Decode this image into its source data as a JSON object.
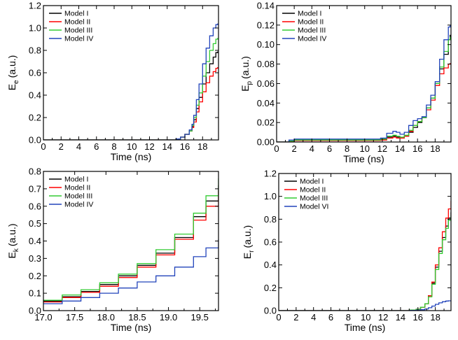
{
  "chart_data": [
    {
      "type": "line",
      "id": "Ee",
      "ylabel_main": "E",
      "ylabel_sub": "e",
      "ylabel_unit": "(a.u.)",
      "xlabel": "Time (ns)",
      "xlim": [
        0,
        19.8
      ],
      "ylim": [
        0,
        1.2
      ],
      "xticks": [
        0,
        2,
        4,
        6,
        8,
        10,
        12,
        14,
        16,
        18
      ],
      "xtick_labels": [
        "0",
        "2",
        "4",
        "6",
        "8",
        "10",
        "12",
        "14",
        "16",
        "18"
      ],
      "yticks": [
        0,
        0.2,
        0.4,
        0.6,
        0.8,
        1.0,
        1.2
      ],
      "ytick_labels": [
        "0.0",
        "0.2",
        "0.4",
        "0.6",
        "0.8",
        "1.0",
        "1.2"
      ],
      "legend_position": "top-left",
      "series": [
        {
          "name": "Model I",
          "color": "#000000",
          "x": [
            0,
            14.0,
            15.0,
            15.5,
            16.0,
            16.5,
            16.8,
            17.0,
            17.3,
            17.6,
            18.0,
            18.4,
            18.8,
            19.2,
            19.5,
            19.7
          ],
          "y": [
            0.0,
            0.0,
            0.008,
            0.025,
            0.05,
            0.08,
            0.12,
            0.18,
            0.28,
            0.38,
            0.5,
            0.6,
            0.68,
            0.74,
            0.78,
            0.79
          ]
        },
        {
          "name": "Model II",
          "color": "#ff0000",
          "x": [
            0,
            14.0,
            15.0,
            15.5,
            16.0,
            16.5,
            16.8,
            17.0,
            17.3,
            17.6,
            18.0,
            18.4,
            18.8,
            19.2,
            19.5,
            19.7
          ],
          "y": [
            0.0,
            0.0,
            0.008,
            0.025,
            0.05,
            0.08,
            0.11,
            0.16,
            0.25,
            0.34,
            0.43,
            0.51,
            0.57,
            0.61,
            0.64,
            0.65
          ]
        },
        {
          "name": "Model III",
          "color": "#33cc33",
          "x": [
            0,
            14.0,
            15.0,
            15.5,
            16.0,
            16.5,
            16.8,
            17.0,
            17.3,
            17.6,
            18.0,
            18.4,
            18.8,
            19.2,
            19.5,
            19.7
          ],
          "y": [
            0.0,
            0.0,
            0.008,
            0.025,
            0.05,
            0.08,
            0.13,
            0.2,
            0.31,
            0.42,
            0.57,
            0.7,
            0.8,
            0.86,
            0.9,
            0.91
          ]
        },
        {
          "name": "Model IV",
          "color": "#2244bb",
          "x": [
            0,
            14.0,
            15.0,
            15.5,
            16.0,
            16.5,
            16.8,
            17.0,
            17.3,
            17.6,
            18.0,
            18.4,
            18.8,
            19.2,
            19.5,
            19.7
          ],
          "y": [
            0.0,
            0.0,
            0.008,
            0.025,
            0.05,
            0.09,
            0.14,
            0.22,
            0.36,
            0.5,
            0.68,
            0.82,
            0.93,
            1.0,
            1.03,
            1.04
          ]
        }
      ]
    },
    {
      "type": "line",
      "id": "Ep",
      "ylabel_main": "E",
      "ylabel_sub": "p",
      "ylabel_unit": "(a.u.)",
      "xlabel": "Time (ns)",
      "xlim": [
        0,
        19.8
      ],
      "ylim": [
        0,
        0.14
      ],
      "xticks": [
        0,
        2,
        4,
        6,
        8,
        10,
        12,
        14,
        16,
        18
      ],
      "xtick_labels": [
        "0",
        "2",
        "4",
        "6",
        "8",
        "10",
        "12",
        "14",
        "16",
        "18"
      ],
      "yticks": [
        0,
        0.02,
        0.04,
        0.06,
        0.08,
        0.1,
        0.12,
        0.14
      ],
      "ytick_labels": [
        "0.00",
        "0.02",
        "0.04",
        "0.06",
        "0.08",
        "0.10",
        "0.12",
        "0.14"
      ],
      "legend_position": "top-left",
      "series": [
        {
          "name": "Model I",
          "color": "#000000",
          "x": [
            0,
            1.4,
            2.0,
            6.0,
            10.0,
            11.8,
            12.5,
            13.2,
            13.6,
            14.0,
            14.5,
            15.0,
            15.5,
            16.0,
            16.5,
            17.0,
            17.5,
            18.0,
            18.5,
            19.0,
            19.5,
            19.7
          ],
          "y": [
            0.0,
            0.001,
            0.002,
            0.002,
            0.002,
            0.003,
            0.005,
            0.006,
            0.005,
            0.004,
            0.006,
            0.01,
            0.015,
            0.02,
            0.025,
            0.035,
            0.045,
            0.06,
            0.075,
            0.09,
            0.105,
            0.11
          ]
        },
        {
          "name": "Model II",
          "color": "#ff0000",
          "x": [
            0,
            1.4,
            2.0,
            6.0,
            10.0,
            11.8,
            12.5,
            13.2,
            13.6,
            14.0,
            14.5,
            15.0,
            15.5,
            16.0,
            16.5,
            17.0,
            17.5,
            18.0,
            18.5,
            19.0,
            19.5,
            19.7
          ],
          "y": [
            0.0,
            0.001,
            0.0015,
            0.0015,
            0.0015,
            0.002,
            0.004,
            0.005,
            0.004,
            0.004,
            0.006,
            0.011,
            0.017,
            0.021,
            0.025,
            0.033,
            0.043,
            0.058,
            0.07,
            0.076,
            0.08,
            0.081
          ]
        },
        {
          "name": "Model III",
          "color": "#33cc33",
          "x": [
            0,
            1.4,
            2.0,
            6.0,
            10.0,
            11.8,
            12.5,
            13.2,
            13.6,
            14.0,
            14.5,
            15.0,
            15.5,
            16.0,
            16.5,
            17.0,
            17.5,
            18.0,
            18.5,
            19.0,
            19.5,
            19.7
          ],
          "y": [
            0.0,
            0.001,
            0.002,
            0.002,
            0.002,
            0.003,
            0.006,
            0.007,
            0.006,
            0.005,
            0.007,
            0.012,
            0.017,
            0.021,
            0.025,
            0.035,
            0.045,
            0.06,
            0.077,
            0.093,
            0.105,
            0.108
          ]
        },
        {
          "name": "Model IV",
          "color": "#2244bb",
          "x": [
            0,
            1.4,
            2.0,
            6.0,
            10.0,
            11.8,
            12.5,
            13.2,
            13.6,
            14.0,
            14.5,
            15.0,
            15.5,
            16.0,
            16.5,
            17.0,
            17.5,
            18.0,
            18.5,
            19.0,
            19.5,
            19.7
          ],
          "y": [
            0.0,
            0.002,
            0.003,
            0.003,
            0.003,
            0.004,
            0.009,
            0.011,
            0.01,
            0.008,
            0.01,
            0.017,
            0.022,
            0.024,
            0.026,
            0.038,
            0.048,
            0.062,
            0.085,
            0.105,
            0.118,
            0.12
          ]
        }
      ]
    },
    {
      "type": "line",
      "id": "Ek",
      "ylabel_main": "E",
      "ylabel_sub": "k",
      "ylabel_unit": "(a.u.)",
      "xlabel": "Time (ns)",
      "xlim": [
        17.0,
        19.8
      ],
      "ylim": [
        0,
        0.8
      ],
      "xticks": [
        17.0,
        17.5,
        18.0,
        18.5,
        19.0,
        19.5
      ],
      "xtick_labels": [
        "17.0",
        "17.5",
        "18.0",
        "18.5",
        "19.0",
        "19.5"
      ],
      "yticks": [
        0,
        0.1,
        0.2,
        0.3,
        0.4,
        0.5,
        0.6,
        0.7,
        0.8
      ],
      "ytick_labels": [
        "0.0",
        "0.1",
        "0.2",
        "0.3",
        "0.4",
        "0.5",
        "0.6",
        "0.7",
        "0.8"
      ],
      "legend_position": "top-left",
      "series": [
        {
          "name": "Model I",
          "color": "#000000",
          "x": [
            17.0,
            17.3,
            17.6,
            17.9,
            18.2,
            18.5,
            18.8,
            19.1,
            19.4,
            19.6,
            19.8
          ],
          "y": [
            0.055,
            0.08,
            0.11,
            0.15,
            0.2,
            0.26,
            0.33,
            0.42,
            0.54,
            0.63,
            0.72
          ]
        },
        {
          "name": "Model II",
          "color": "#ff0000",
          "x": [
            17.0,
            17.3,
            17.6,
            17.9,
            18.2,
            18.5,
            18.8,
            19.1,
            19.4,
            19.6,
            19.8
          ],
          "y": [
            0.05,
            0.075,
            0.105,
            0.14,
            0.19,
            0.25,
            0.32,
            0.41,
            0.52,
            0.6,
            0.69
          ]
        },
        {
          "name": "Model III",
          "color": "#33cc33",
          "x": [
            17.0,
            17.3,
            17.6,
            17.9,
            18.2,
            18.5,
            18.8,
            19.1,
            19.4,
            19.6,
            19.8
          ],
          "y": [
            0.06,
            0.09,
            0.12,
            0.16,
            0.21,
            0.27,
            0.35,
            0.44,
            0.56,
            0.66,
            0.76
          ]
        },
        {
          "name": "Model IV",
          "color": "#2244bb",
          "x": [
            17.0,
            17.3,
            17.6,
            17.9,
            18.2,
            18.5,
            18.8,
            19.1,
            19.4,
            19.6,
            19.8
          ],
          "y": [
            0.04,
            0.055,
            0.075,
            0.1,
            0.13,
            0.165,
            0.2,
            0.25,
            0.31,
            0.36,
            0.41
          ]
        }
      ]
    },
    {
      "type": "line",
      "id": "Er",
      "ylabel_main": "E",
      "ylabel_sub": "r",
      "ylabel_unit": "(a.u.)",
      "xlabel": "Time (ns)",
      "xlim": [
        0,
        19.8
      ],
      "ylim": [
        0,
        1.2
      ],
      "xticks": [
        0,
        2,
        4,
        6,
        8,
        10,
        12,
        14,
        16,
        18
      ],
      "xtick_labels": [
        "0",
        "2",
        "4",
        "6",
        "8",
        "10",
        "12",
        "14",
        "16",
        "18"
      ],
      "yticks": [
        0,
        0.2,
        0.4,
        0.6,
        0.8,
        1.0,
        1.2
      ],
      "ytick_labels": [
        "0.0",
        "0.2",
        "0.4",
        "0.6",
        "0.8",
        "1.0",
        "1.2"
      ],
      "legend_position": "top-left",
      "series": [
        {
          "name": "Model I",
          "color": "#000000",
          "x": [
            0,
            13.0,
            15.0,
            15.8,
            16.3,
            16.8,
            17.2,
            17.6,
            18.0,
            18.4,
            18.8,
            19.2,
            19.5,
            19.8
          ],
          "y": [
            0.0,
            0.0,
            0.005,
            0.012,
            0.03,
            0.06,
            0.13,
            0.24,
            0.38,
            0.52,
            0.64,
            0.74,
            0.81,
            0.86
          ]
        },
        {
          "name": "Model II",
          "color": "#ff0000",
          "x": [
            0,
            13.0,
            15.0,
            15.8,
            16.3,
            16.8,
            17.2,
            17.6,
            18.0,
            18.4,
            18.8,
            19.2,
            19.5,
            19.8
          ],
          "y": [
            0.0,
            0.0,
            0.005,
            0.012,
            0.03,
            0.06,
            0.13,
            0.25,
            0.4,
            0.55,
            0.69,
            0.81,
            0.89,
            0.96
          ]
        },
        {
          "name": "Model III",
          "color": "#33cc33",
          "x": [
            0,
            13.0,
            15.0,
            15.8,
            16.3,
            16.8,
            17.2,
            17.6,
            18.0,
            18.4,
            18.8,
            19.2,
            19.5,
            19.8
          ],
          "y": [
            0.0,
            0.0,
            0.005,
            0.012,
            0.03,
            0.06,
            0.12,
            0.23,
            0.36,
            0.5,
            0.62,
            0.72,
            0.79,
            0.83
          ]
        },
        {
          "name": "Model VI",
          "color": "#2244bb",
          "x": [
            0,
            13.0,
            15.0,
            15.8,
            16.3,
            16.8,
            17.2,
            17.6,
            18.0,
            18.4,
            18.8,
            19.2,
            19.5,
            19.8
          ],
          "y": [
            0.0,
            0.0,
            0.002,
            0.004,
            0.008,
            0.015,
            0.025,
            0.04,
            0.055,
            0.068,
            0.078,
            0.084,
            0.086,
            0.087
          ]
        }
      ]
    }
  ]
}
